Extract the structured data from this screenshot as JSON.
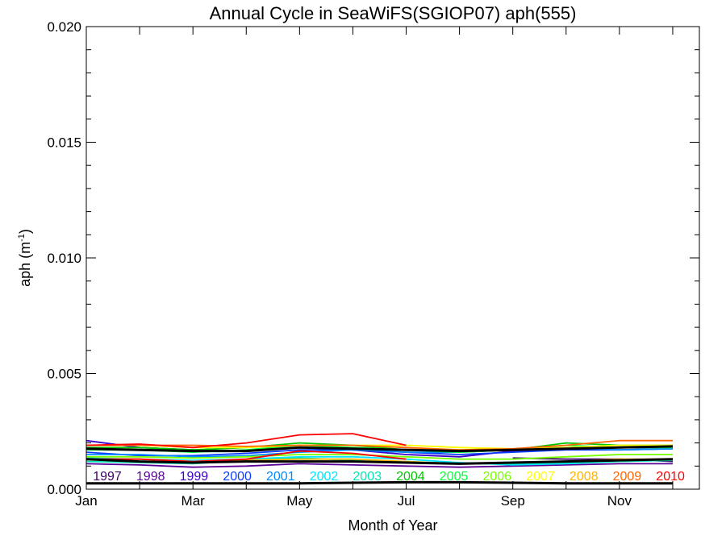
{
  "chart_data": {
    "type": "line",
    "title": "Annual Cycle in SeaWiFS(SGIOP07) aph(555)",
    "xlabel": "Month of Year",
    "ylabel": "aph (m",
    "ylabel_sup": "-1",
    "ylabel_close": ")",
    "xlim": [
      1,
      12.5
    ],
    "ylim": [
      0,
      0.02
    ],
    "x_ticks": [
      1,
      3,
      5,
      7,
      9,
      11
    ],
    "x_tick_labels": [
      "Jan",
      "Mar",
      "May",
      "Jul",
      "Sep",
      "Nov"
    ],
    "y_ticks": [
      0,
      0.005,
      0.01,
      0.015,
      0.02
    ],
    "y_tick_labels": [
      "0.000",
      "0.005",
      "0.010",
      "0.015",
      "0.020"
    ],
    "x": [
      1,
      2,
      3,
      4,
      5,
      6,
      7,
      8,
      9,
      10,
      11,
      12
    ],
    "series": [
      {
        "name": "1997",
        "color": "#3c0064",
        "values": [
          null,
          null,
          null,
          null,
          null,
          null,
          null,
          null,
          0.00135,
          0.0013,
          0.0013,
          0.0012
        ]
      },
      {
        "name": "1998",
        "color": "#5a0096",
        "values": [
          0.0011,
          0.00105,
          0.00095,
          0.001,
          0.0011,
          0.00105,
          0.001,
          0.00095,
          0.001,
          0.00105,
          0.0011,
          0.0011
        ]
      },
      {
        "name": "1999",
        "color": "#3c00c8",
        "values": [
          0.0021,
          0.0018,
          0.0017,
          0.00165,
          0.0018,
          0.0017,
          0.0015,
          0.0014,
          0.00165,
          0.00175,
          0.0018,
          0.0018
        ]
      },
      {
        "name": "2000",
        "color": "#0a3cff",
        "values": [
          0.0016,
          0.00145,
          0.00145,
          0.00155,
          0.0017,
          0.0017,
          0.0016,
          0.0015,
          0.0016,
          0.0017,
          0.0017,
          0.00175
        ]
      },
      {
        "name": "2001",
        "color": "#008cff",
        "values": [
          0.0015,
          0.0015,
          0.0014,
          0.00145,
          0.0016,
          0.0017,
          0.0016,
          0.0016,
          0.0017,
          0.0018,
          0.0017,
          0.00175
        ]
      },
      {
        "name": "2002",
        "color": "#00e6ff",
        "values": [
          0.00135,
          0.0013,
          0.00125,
          0.0013,
          0.0014,
          0.0014,
          0.0013,
          0.00115,
          0.00105,
          0.0011,
          0.0012,
          0.00125
        ]
      },
      {
        "name": "2003",
        "color": "#00e6b4",
        "values": [
          0.0012,
          0.00115,
          0.0011,
          0.00125,
          0.00135,
          0.00125,
          0.0012,
          0.0011,
          0.0011,
          0.00115,
          0.0012,
          0.00125
        ]
      },
      {
        "name": "2004",
        "color": "#00c800",
        "values": [
          0.0018,
          0.0018,
          0.0017,
          0.0018,
          0.002,
          0.0019,
          0.0017,
          0.0016,
          0.0017,
          0.002,
          0.0019,
          0.0019
        ]
      },
      {
        "name": "2005",
        "color": "#00ff3c",
        "values": [
          0.0017,
          0.0017,
          0.0016,
          0.0017,
          0.0019,
          0.0018,
          0.0017,
          0.0016,
          0.0017,
          0.0019,
          0.0018,
          0.0018
        ]
      },
      {
        "name": "2006",
        "color": "#78ff00",
        "values": [
          0.0014,
          0.0014,
          0.00135,
          0.0014,
          0.0015,
          0.0015,
          0.0014,
          0.0013,
          0.0013,
          0.0014,
          0.0015,
          0.0015
        ]
      },
      {
        "name": "2007",
        "color": "#ffff00",
        "values": [
          0.0019,
          0.0019,
          0.0018,
          0.0018,
          0.0019,
          0.0019,
          0.0019,
          0.0018,
          0.00175,
          0.0018,
          0.0019,
          0.0019
        ]
      },
      {
        "name": "2008",
        "color": "#ffb400",
        "values": [
          0.0013,
          0.0013,
          0.0012,
          0.00125,
          0.0013,
          0.0013,
          0.0012,
          0.0011,
          0.00115,
          0.0012,
          0.0013,
          0.0013
        ]
      },
      {
        "name": "2009",
        "color": "#ff6400",
        "values": [
          0.0019,
          0.0019,
          0.0019,
          0.00185,
          0.0019,
          0.0019,
          0.0018,
          0.0017,
          0.00175,
          0.0019,
          0.0021,
          0.0021
        ]
      },
      {
        "name": "2010",
        "color": "#ff0000",
        "values": [
          0.0019,
          0.00195,
          0.0018,
          0.002,
          0.00235,
          0.0024,
          0.0019,
          null,
          null,
          null,
          null,
          null
        ]
      },
      {
        "color": "#ff0000",
        "values": [
          0.0013,
          0.0013,
          0.0012,
          0.0013,
          0.00165,
          0.00155,
          0.0013,
          null,
          null,
          null,
          null,
          null
        ]
      },
      {
        "color": "#000000",
        "values": [
          0.00175,
          0.0017,
          0.00165,
          0.00165,
          0.0018,
          0.00175,
          0.0017,
          0.00165,
          0.0017,
          0.00175,
          0.0018,
          0.00185
        ]
      },
      {
        "color": "#000000",
        "values": [
          0.0013,
          0.0012,
          0.00115,
          0.0012,
          0.0012,
          0.0012,
          0.00115,
          0.0011,
          0.00115,
          0.0012,
          0.00125,
          0.0013
        ]
      },
      {
        "color": "#000000",
        "values": [
          0.00025,
          0.00025,
          0.00025,
          0.00025,
          0.00025,
          0.00028,
          0.0003,
          0.0003,
          0.00028,
          0.00025,
          0.00025,
          0.00025
        ]
      }
    ]
  }
}
